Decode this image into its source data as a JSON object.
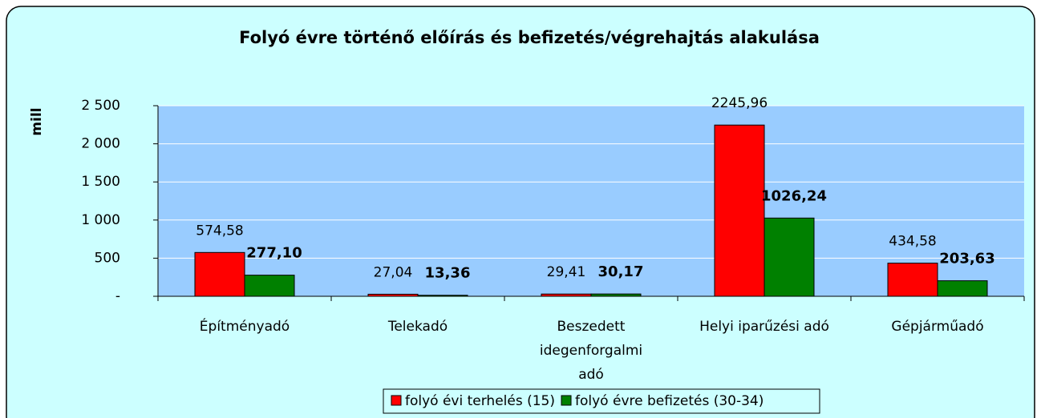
{
  "chart_data": {
    "type": "bar",
    "title": "Folyó évre történő előírás és befizetés/végrehajtás alakulása",
    "y_label": "mill",
    "categories": [
      "Építményadó",
      "Telekadó",
      "Beszedett idegenforgalmi adó",
      "Helyi iparűzési adó",
      "Gépjárműadó"
    ],
    "series": [
      {
        "name": "folyó évi terhelés (15)",
        "color": "#ff0000",
        "values": [
          574.58,
          27.04,
          29.41,
          2245.96,
          434.58
        ],
        "value_labels": [
          "574,58",
          "27,04",
          "29,41",
          "2245,96",
          "434,58"
        ]
      },
      {
        "name": "folyó évre befizetés (30-34)",
        "color": "#008000",
        "values": [
          277.1,
          13.36,
          30.17,
          1026.24,
          203.63
        ],
        "value_labels": [
          "277,10",
          "13,36",
          "30,17",
          "1026,24",
          "203,63"
        ]
      }
    ],
    "ylim": [
      0,
      2500
    ],
    "yticks": [
      {
        "value": 0,
        "label": "-"
      },
      500,
      {
        "value": 1000,
        "label": "1 000"
      },
      {
        "value": 1500,
        "label": "1 500"
      },
      {
        "value": 2000,
        "label": "2 000"
      },
      {
        "value": 2500,
        "label": "2 500"
      }
    ],
    "grid": true,
    "legend": "bottom"
  }
}
